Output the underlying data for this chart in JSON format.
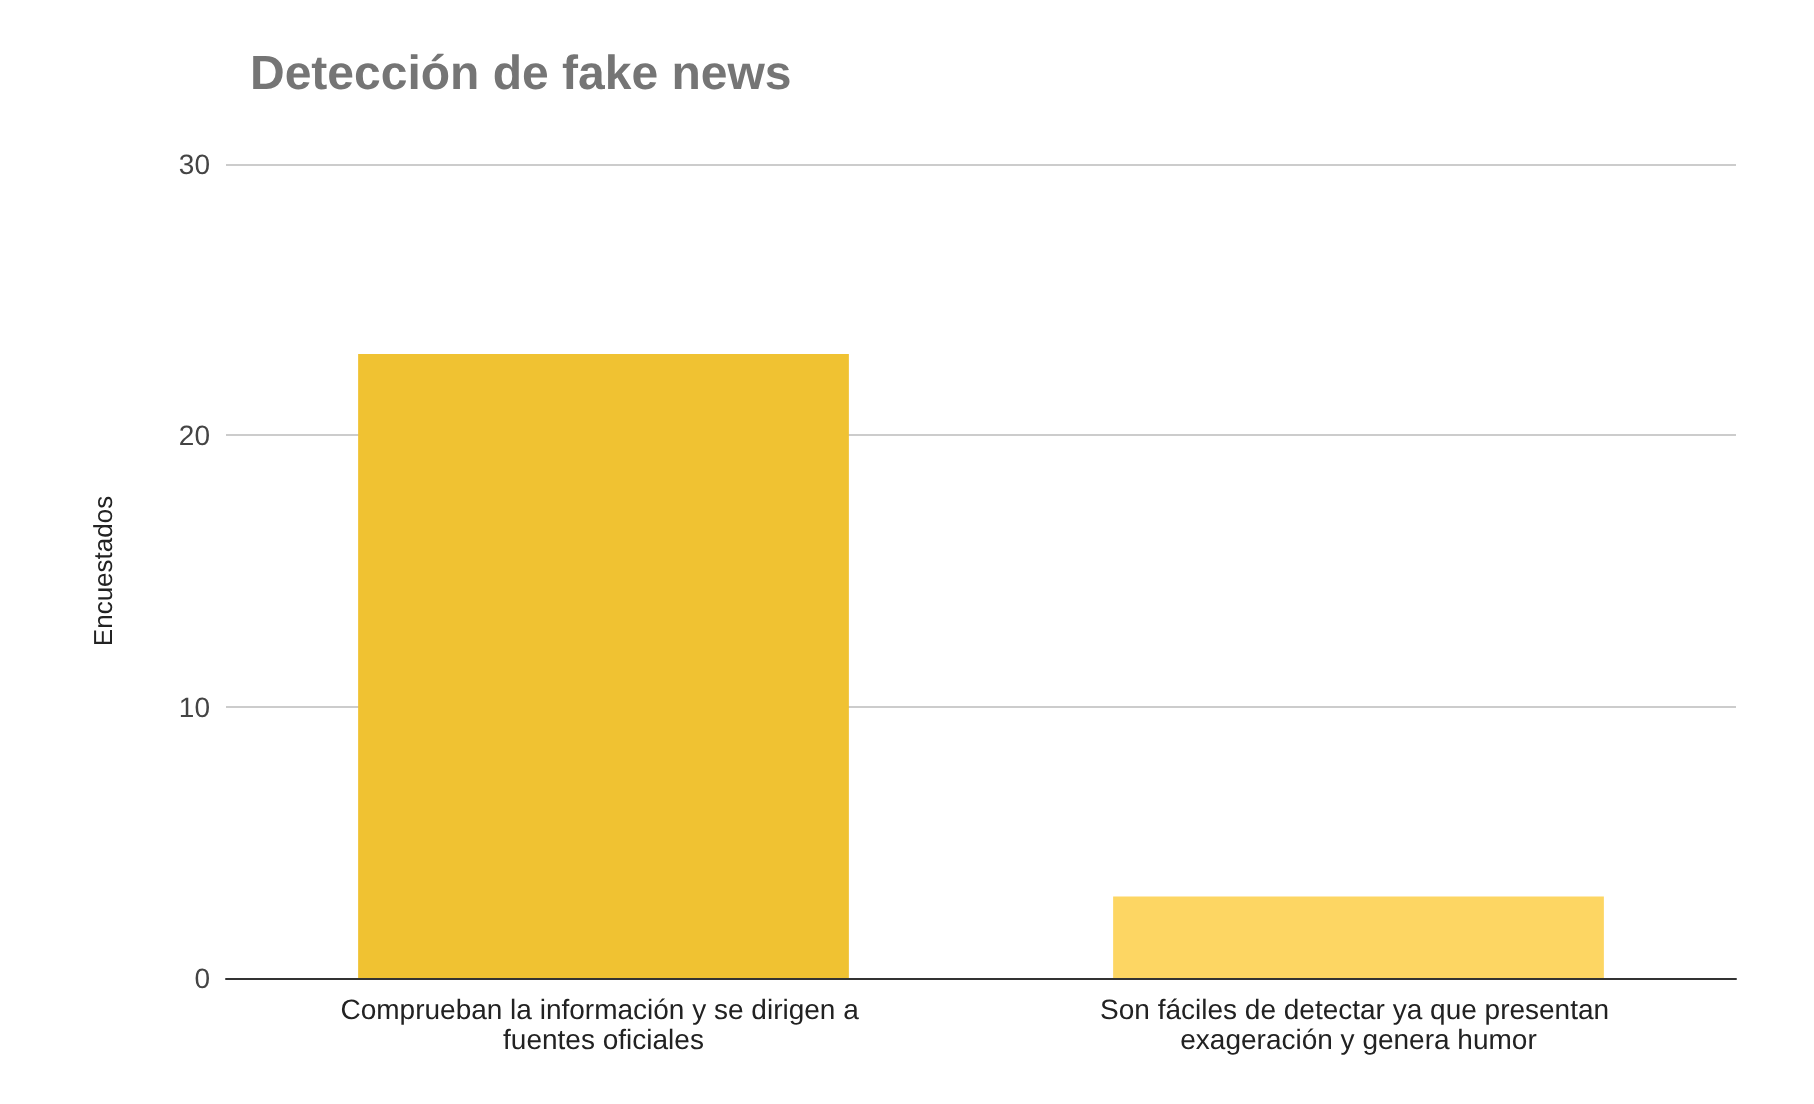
{
  "chart_data": {
    "type": "bar",
    "title": "Detección de fake news",
    "ylabel": "Encuestados",
    "categories": [
      "Comprueban la información y se dirigen a fuentes oficiales",
      "Son fáciles de detectar ya que presentan exageración y genera humor"
    ],
    "values": [
      23,
      3
    ],
    "colors": [
      "#f0c232",
      "#fdd663"
    ],
    "ylim": [
      0,
      30
    ],
    "yticks": [
      0,
      10,
      20,
      30
    ],
    "grid": "y"
  }
}
